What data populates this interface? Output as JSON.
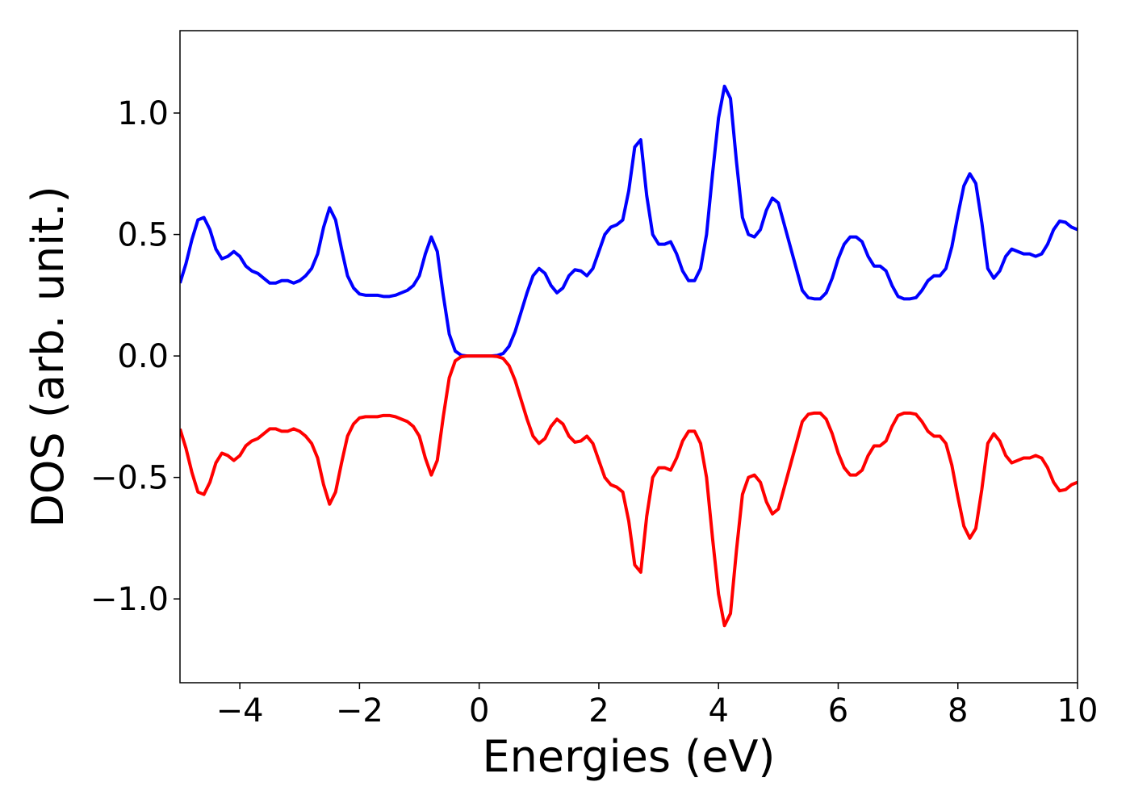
{
  "chart_data": {
    "type": "line",
    "xlabel": "Energies (eV)",
    "ylabel": "DOS (arb. unit.)",
    "x": [
      -5.0,
      -4.9,
      -4.8,
      -4.7,
      -4.6,
      -4.5,
      -4.4,
      -4.3,
      -4.2,
      -4.1,
      -4.0,
      -3.9,
      -3.8,
      -3.7,
      -3.6,
      -3.5,
      -3.4,
      -3.3,
      -3.2,
      -3.1,
      -3.0,
      -2.9,
      -2.8,
      -2.7,
      -2.6,
      -2.5,
      -2.4,
      -2.3,
      -2.2,
      -2.1,
      -2.0,
      -1.9,
      -1.8,
      -1.7,
      -1.6,
      -1.5,
      -1.4,
      -1.3,
      -1.2,
      -1.1,
      -1.0,
      -0.9,
      -0.8,
      -0.7,
      -0.6,
      -0.5,
      -0.4,
      -0.3,
      -0.2,
      -0.1,
      0.0,
      0.1,
      0.2,
      0.3,
      0.4,
      0.5,
      0.6,
      0.7,
      0.8,
      0.9,
      1.0,
      1.1,
      1.2,
      1.3,
      1.4,
      1.5,
      1.6,
      1.7,
      1.8,
      1.9,
      2.0,
      2.1,
      2.2,
      2.3,
      2.4,
      2.5,
      2.6,
      2.7,
      2.8,
      2.9,
      3.0,
      3.1,
      3.2,
      3.3,
      3.4,
      3.5,
      3.6,
      3.7,
      3.8,
      3.9,
      4.0,
      4.1,
      4.2,
      4.3,
      4.4,
      4.5,
      4.6,
      4.7,
      4.8,
      4.9,
      5.0,
      5.1,
      5.2,
      5.3,
      5.4,
      5.5,
      5.6,
      5.7,
      5.8,
      5.9,
      6.0,
      6.1,
      6.2,
      6.3,
      6.4,
      6.5,
      6.6,
      6.7,
      6.8,
      6.9,
      7.0,
      7.1,
      7.2,
      7.3,
      7.4,
      7.5,
      7.6,
      7.7,
      7.8,
      7.9,
      8.0,
      8.1,
      8.2,
      8.3,
      8.4,
      8.5,
      8.6,
      8.7,
      8.8,
      8.9,
      9.0,
      9.1,
      9.2,
      9.3,
      9.4,
      9.5,
      9.6,
      9.7,
      9.8,
      9.9,
      10.0
    ],
    "series": [
      {
        "color": "#0000ff",
        "values": [
          0.3,
          0.38,
          0.48,
          0.56,
          0.57,
          0.52,
          0.44,
          0.4,
          0.41,
          0.43,
          0.41,
          0.37,
          0.35,
          0.34,
          0.32,
          0.3,
          0.3,
          0.31,
          0.31,
          0.3,
          0.31,
          0.33,
          0.36,
          0.42,
          0.53,
          0.61,
          0.56,
          0.44,
          0.33,
          0.28,
          0.255,
          0.25,
          0.25,
          0.25,
          0.245,
          0.245,
          0.25,
          0.26,
          0.27,
          0.29,
          0.33,
          0.42,
          0.49,
          0.43,
          0.25,
          0.09,
          0.02,
          0.003,
          0,
          0,
          0,
          0,
          0,
          0.002,
          0.01,
          0.04,
          0.1,
          0.18,
          0.26,
          0.33,
          0.36,
          0.34,
          0.29,
          0.26,
          0.28,
          0.33,
          0.355,
          0.35,
          0.33,
          0.36,
          0.43,
          0.5,
          0.53,
          0.54,
          0.56,
          0.68,
          0.86,
          0.89,
          0.66,
          0.5,
          0.46,
          0.46,
          0.47,
          0.42,
          0.35,
          0.31,
          0.31,
          0.36,
          0.5,
          0.75,
          0.98,
          1.11,
          1.06,
          0.8,
          0.57,
          0.5,
          0.49,
          0.52,
          0.6,
          0.65,
          0.63,
          0.54,
          0.45,
          0.36,
          0.27,
          0.24,
          0.235,
          0.235,
          0.26,
          0.32,
          0.4,
          0.46,
          0.49,
          0.49,
          0.47,
          0.41,
          0.37,
          0.37,
          0.35,
          0.29,
          0.245,
          0.235,
          0.235,
          0.24,
          0.27,
          0.31,
          0.33,
          0.33,
          0.36,
          0.45,
          0.58,
          0.7,
          0.75,
          0.71,
          0.55,
          0.36,
          0.32,
          0.35,
          0.41,
          0.44,
          0.43,
          0.42,
          0.42,
          0.41,
          0.42,
          0.46,
          0.52,
          0.555,
          0.55,
          0.53,
          0.52
        ]
      },
      {
        "color": "#ff0000",
        "values": [
          -0.3,
          -0.38,
          -0.48,
          -0.56,
          -0.57,
          -0.52,
          -0.44,
          -0.4,
          -0.41,
          -0.43,
          -0.41,
          -0.37,
          -0.35,
          -0.34,
          -0.32,
          -0.3,
          -0.3,
          -0.31,
          -0.31,
          -0.3,
          -0.31,
          -0.33,
          -0.36,
          -0.42,
          -0.53,
          -0.61,
          -0.56,
          -0.44,
          -0.33,
          -0.28,
          -0.255,
          -0.25,
          -0.25,
          -0.25,
          -0.245,
          -0.245,
          -0.25,
          -0.26,
          -0.27,
          -0.29,
          -0.33,
          -0.42,
          -0.49,
          -0.43,
          -0.25,
          -0.09,
          -0.02,
          -0.003,
          0,
          0,
          0,
          0,
          0,
          -0.002,
          -0.01,
          -0.04,
          -0.1,
          -0.18,
          -0.26,
          -0.33,
          -0.36,
          -0.34,
          -0.29,
          -0.26,
          -0.28,
          -0.33,
          -0.355,
          -0.35,
          -0.33,
          -0.36,
          -0.43,
          -0.5,
          -0.53,
          -0.54,
          -0.56,
          -0.68,
          -0.86,
          -0.89,
          -0.66,
          -0.5,
          -0.46,
          -0.46,
          -0.47,
          -0.42,
          -0.35,
          -0.31,
          -0.31,
          -0.36,
          -0.5,
          -0.75,
          -0.98,
          -1.11,
          -1.06,
          -0.8,
          -0.57,
          -0.5,
          -0.49,
          -0.52,
          -0.6,
          -0.65,
          -0.63,
          -0.54,
          -0.45,
          -0.36,
          -0.27,
          -0.24,
          -0.235,
          -0.235,
          -0.26,
          -0.32,
          -0.4,
          -0.46,
          -0.49,
          -0.49,
          -0.47,
          -0.41,
          -0.37,
          -0.37,
          -0.35,
          -0.29,
          -0.245,
          -0.235,
          -0.235,
          -0.24,
          -0.27,
          -0.31,
          -0.33,
          -0.33,
          -0.36,
          -0.45,
          -0.58,
          -0.7,
          -0.75,
          -0.71,
          -0.55,
          -0.36,
          -0.32,
          -0.35,
          -0.41,
          -0.44,
          -0.43,
          -0.42,
          -0.42,
          -0.41,
          -0.42,
          -0.46,
          -0.52,
          -0.555,
          -0.55,
          -0.53,
          -0.52
        ]
      }
    ],
    "xlim": [
      -5,
      10
    ],
    "ylim": [
      -1.345,
      1.339
    ],
    "xticks": [
      {
        "value": -4,
        "label": "−4"
      },
      {
        "value": -2,
        "label": "−2"
      },
      0,
      2,
      4,
      6,
      8,
      10
    ],
    "yticks": [
      {
        "value": -1.0,
        "label": "−1.0"
      },
      {
        "value": -0.5,
        "label": "−0.5"
      },
      {
        "value": 0.0,
        "label": "0.0"
      },
      {
        "value": 0.5,
        "label": "0.5"
      },
      {
        "value": 1.0,
        "label": "1.0"
      }
    ],
    "grid": false
  }
}
